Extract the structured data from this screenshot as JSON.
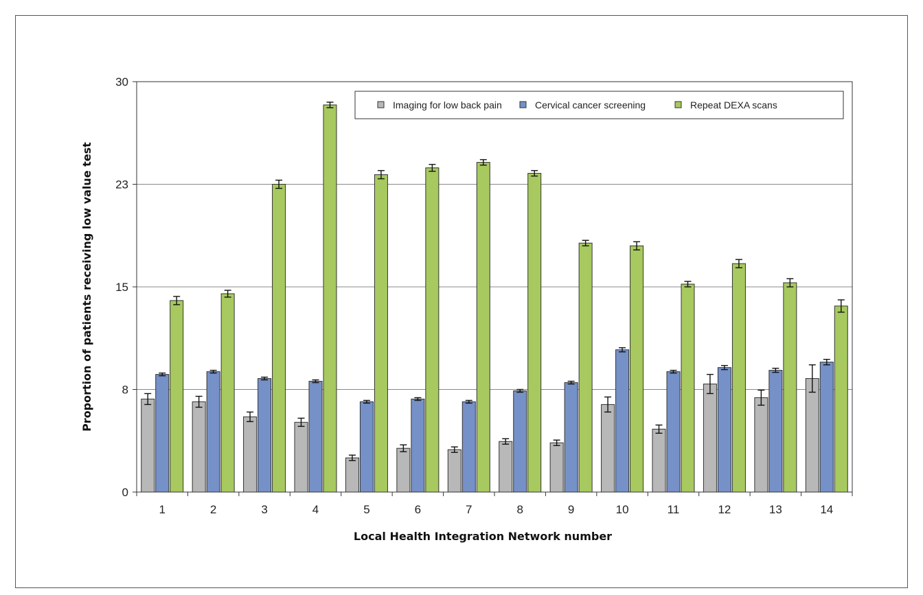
{
  "chart_data": {
    "type": "bar",
    "title": "",
    "xlabel": "Local Health Integration Network number",
    "ylabel": "Proportion of patients receiving low value test",
    "ylim": [
      0,
      30
    ],
    "yticks": [
      "0",
      "8",
      "15",
      "23",
      "30"
    ],
    "ytick_values": [
      0,
      7.5,
      15,
      22.5,
      30
    ],
    "grid": true,
    "legend_position": "top-right",
    "categories": [
      "1",
      "2",
      "3",
      "4",
      "5",
      "6",
      "7",
      "8",
      "9",
      "10",
      "11",
      "12",
      "13",
      "14"
    ],
    "series": [
      {
        "name": "Imaging for low back pain",
        "color": "#b8b8b8",
        "values": [
          6.8,
          6.6,
          5.5,
          5.1,
          2.5,
          3.2,
          3.1,
          3.7,
          3.6,
          6.4,
          4.6,
          7.9,
          6.9,
          8.3
        ],
        "err": [
          0.4,
          0.4,
          0.35,
          0.3,
          0.2,
          0.25,
          0.2,
          0.2,
          0.2,
          0.55,
          0.3,
          0.7,
          0.55,
          1.0
        ]
      },
      {
        "name": "Cervical cancer screening",
        "color": "#7591c7",
        "values": [
          8.6,
          8.8,
          8.3,
          8.1,
          6.6,
          6.8,
          6.6,
          7.4,
          8.0,
          10.4,
          8.8,
          9.1,
          8.9,
          9.5
        ],
        "err": [
          0.1,
          0.1,
          0.1,
          0.1,
          0.1,
          0.1,
          0.1,
          0.1,
          0.1,
          0.15,
          0.1,
          0.15,
          0.15,
          0.2
        ]
      },
      {
        "name": "Repeat DEXA scans",
        "color": "#a7c95f",
        "values": [
          14.0,
          14.5,
          22.5,
          28.3,
          23.2,
          23.7,
          24.1,
          23.3,
          18.2,
          18.0,
          15.2,
          16.7,
          15.3,
          13.6
        ],
        "err": [
          0.3,
          0.25,
          0.3,
          0.2,
          0.3,
          0.25,
          0.2,
          0.2,
          0.2,
          0.3,
          0.2,
          0.3,
          0.3,
          0.45
        ]
      }
    ]
  }
}
